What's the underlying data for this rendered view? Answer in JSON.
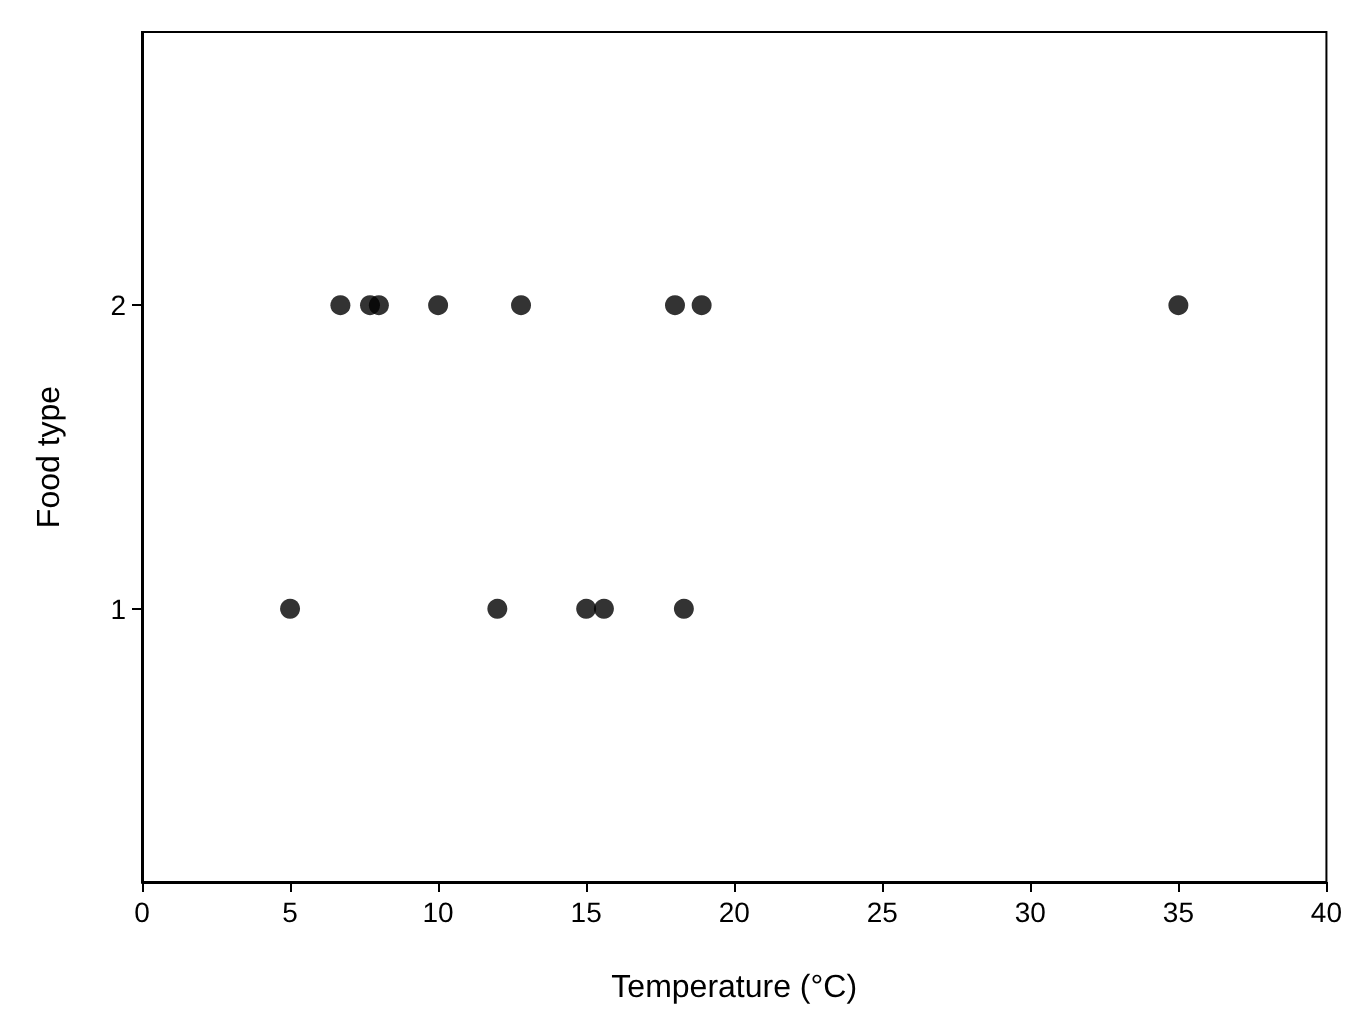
{
  "chart_data": {
    "type": "scatter",
    "xlabel": "Temperature (°C)",
    "ylabel": "Food type",
    "x": [
      6.7,
      7.7,
      8,
      10,
      12.8,
      18,
      18.9,
      35,
      5,
      12,
      15,
      15.6,
      18.3
    ],
    "values": [
      2,
      2,
      2,
      2,
      2,
      2,
      2,
      2,
      1,
      1,
      1,
      1,
      1
    ],
    "color": "#000000",
    "marker": "circle",
    "xlim": [
      0,
      40
    ],
    "xticks": [
      0,
      5,
      10,
      15,
      20,
      25,
      30,
      35,
      40
    ],
    "ylim": [
      0.1,
      2.9
    ],
    "yticks": [
      1,
      2
    ],
    "grid": false
  }
}
